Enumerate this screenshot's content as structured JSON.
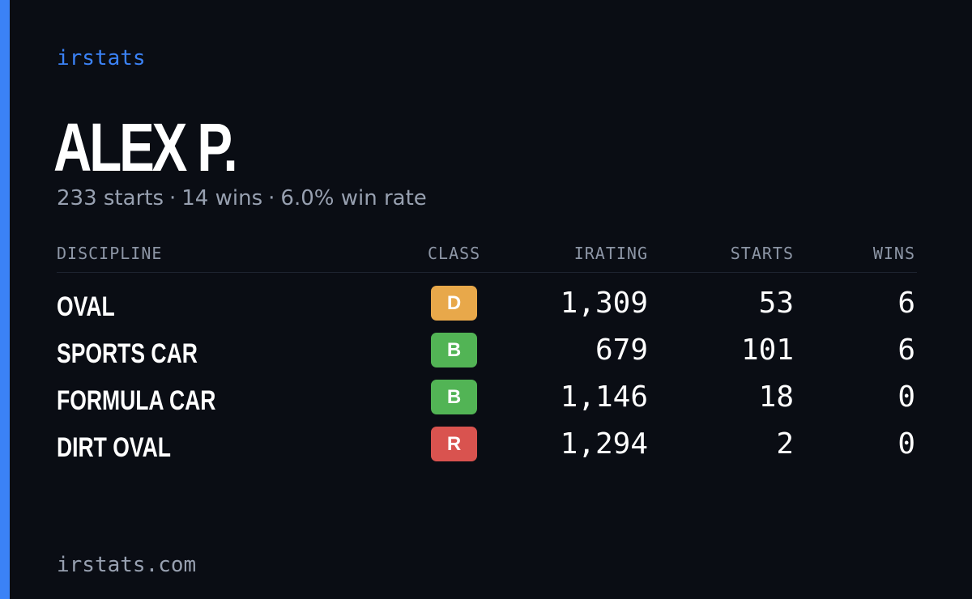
{
  "brand": "irstats",
  "player": {
    "name": "ALEX P.",
    "starts_text": "233 starts",
    "wins_text": "14 wins",
    "win_rate_text": "6.0% win rate",
    "separator": "·"
  },
  "table": {
    "headers": {
      "discipline": "DISCIPLINE",
      "class": "CLASS",
      "irating": "IRATING",
      "starts": "STARTS",
      "wins": "WINS"
    },
    "rows": [
      {
        "discipline": "OVAL",
        "class": "D",
        "class_color": "#e8a84a",
        "irating": "1,309",
        "starts": "53",
        "wins": "6"
      },
      {
        "discipline": "SPORTS CAR",
        "class": "B",
        "class_color": "#52b455",
        "irating": "679",
        "starts": "101",
        "wins": "6"
      },
      {
        "discipline": "FORMULA CAR",
        "class": "B",
        "class_color": "#52b455",
        "irating": "1,146",
        "starts": "18",
        "wins": "0"
      },
      {
        "discipline": "DIRT OVAL",
        "class": "R",
        "class_color": "#d9534f",
        "irating": "1,294",
        "starts": "2",
        "wins": "0"
      }
    ]
  },
  "footer": {
    "url": "irstats.com"
  },
  "colors": {
    "accent": "#3b82f6",
    "background": "#0a0d14",
    "muted_text": "#97a0b0"
  }
}
